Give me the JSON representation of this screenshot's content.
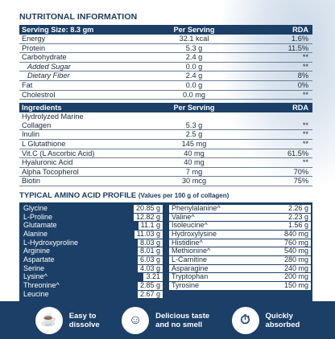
{
  "title": "NUTRITONAL INFORMATION",
  "nutrition": {
    "header": {
      "col1": "Serving Size: 8.3 gm",
      "col2": "Per Serving",
      "col3": "RDA"
    },
    "rows": [
      {
        "name": "Energy",
        "value": "32.1 kcal",
        "rda": "1.6%",
        "indent": false
      },
      {
        "name": "Protein",
        "value": "5.3 g",
        "rda": "11.5%",
        "indent": false
      },
      {
        "name": "Carbohydrate",
        "value": "2.4 g",
        "rda": "**",
        "indent": false
      },
      {
        "name": "Added Sugar",
        "value": "0.0 g",
        "rda": "**",
        "indent": true
      },
      {
        "name": "Dietary Fiber",
        "value": "2.4 g",
        "rda": "8%",
        "indent": true
      },
      {
        "name": "Fat",
        "value": "0.0 g",
        "rda": "0%",
        "indent": false
      },
      {
        "name": "Cholestrol",
        "value": "0.0 mg",
        "rda": "**",
        "indent": false
      }
    ]
  },
  "ingredients": {
    "header": {
      "col1": "Ingredients",
      "col2": "Per Serving",
      "col3": "RDA"
    },
    "rows": [
      {
        "name": "Hydrolyzed Marine",
        "value": "",
        "rda": ""
      },
      {
        "name": "Collagen",
        "value": "5.3 g",
        "rda": "**"
      },
      {
        "name": "Inulin",
        "value": "2.5 g",
        "rda": "**"
      },
      {
        "name": "L Glutathione",
        "value": "145 mg",
        "rda": "**"
      },
      {
        "name": "Vit.C (L Ascorbic Acid)",
        "value": "40 mg",
        "rda": "61.5%"
      },
      {
        "name": "Hyaluronic Acid",
        "value": "40 mg",
        "rda": "**"
      },
      {
        "name": "Alpha Tocopherol",
        "value": "7 mg",
        "rda": "70%"
      },
      {
        "name": "Biotin",
        "value": "30 mcg",
        "rda": "75%"
      }
    ]
  },
  "amino": {
    "title": "TYPICAL AMINO ACID PROFILE",
    "subtitle": "(Values per 100 g of collagen)",
    "left": [
      {
        "name": "Glycine",
        "value": "20.85 g"
      },
      {
        "name": "L-Proline",
        "value": "12.82 g"
      },
      {
        "name": "Glutamate",
        "value": "11.1 g"
      },
      {
        "name": "Alanine",
        "value": "11.03 g"
      },
      {
        "name": "L-Hydroxyproline",
        "value": "8.03 g"
      },
      {
        "name": "Arginine",
        "value": "8.01 g"
      },
      {
        "name": "Aspartate",
        "value": "6.03 g"
      },
      {
        "name": "Serine",
        "value": "4.03 g"
      },
      {
        "name": "Lysine^",
        "value": "3.21"
      },
      {
        "name": "Threonine^",
        "value": "2.85 g"
      },
      {
        "name": "Leucine",
        "value": "2.67 g"
      }
    ],
    "right": [
      {
        "name": "Phenylalanine^",
        "value": "2.26 g"
      },
      {
        "name": "Valine^",
        "value": "2.23 g"
      },
      {
        "name": "Isoleucine^",
        "value": "1.56 g"
      },
      {
        "name": "Hydroxylysine",
        "value": "840 mg"
      },
      {
        "name": "Histidine^",
        "value": "760 mg"
      },
      {
        "name": "Methionine^",
        "value": "540 mg"
      },
      {
        "name": "L-Carnitine",
        "value": "280 mg"
      },
      {
        "name": "Asparagine",
        "value": "240 mg"
      },
      {
        "name": "Tryptophan",
        "value": "200 mg"
      },
      {
        "name": "Tyrosine",
        "value": "150 mg"
      }
    ]
  },
  "features": [
    {
      "icon": "cup-icon",
      "line1": "Easy to",
      "line2": "dissolve"
    },
    {
      "icon": "smile-icon",
      "line1": "Delicious taste",
      "line2": "and no smell"
    },
    {
      "icon": "timer-icon",
      "line1": "Quickly",
      "line2": "absorbed"
    }
  ],
  "colors": {
    "navy": "#1b3f66",
    "text": "#1a2a3a"
  }
}
